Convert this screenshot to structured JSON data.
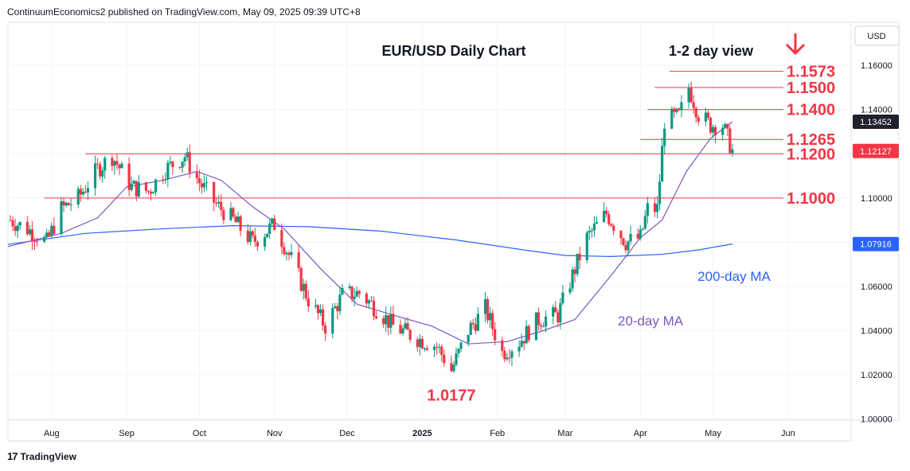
{
  "header": {
    "publisher_line": "ContinuumEconomics2 published on TradingView.com, May 09, 2025 09:39 UTC+8"
  },
  "footer": {
    "brand": "TradingView",
    "logo_icon": "tradingview-logo-icon"
  },
  "chart_data": {
    "type": "candlestick",
    "title": "EUR/USD Daily Chart",
    "view_label": "1-2 day view",
    "view_icon": "arrow-down-icon",
    "currency_label": "USD",
    "y_ticks": [
      "1.16000",
      "1.14000",
      "1.12000",
      "1.10000",
      "1.08000",
      "1.06000",
      "1.04000",
      "1.02000",
      "1.00000"
    ],
    "y_tick_values": [
      1.16,
      1.14,
      1.12,
      1.1,
      1.08,
      1.06,
      1.04,
      1.02,
      1.0
    ],
    "ylim": [
      0.9995,
      1.1795
    ],
    "x_labels": [
      "Aug",
      "Sep",
      "Oct",
      "Nov",
      "Dec",
      "2025",
      "Feb",
      "Mar",
      "Apr",
      "May",
      "Jun"
    ],
    "x_label_dates": [
      "2024-08-01",
      "2024-09-01",
      "2024-10-01",
      "2024-11-01",
      "2024-12-01",
      "2025-01-01",
      "2025-02-01",
      "2025-03-01",
      "2025-04-01",
      "2025-05-01",
      "2025-06-01"
    ],
    "xlim": [
      "2024-07-14",
      "2025-06-27"
    ],
    "price_labels": [
      {
        "text": "1.13452",
        "value": 1.13452,
        "bg": "#1e222d"
      },
      {
        "text": "1.12127",
        "value": 1.12127,
        "bg": "#f23645"
      },
      {
        "text": "1.07916",
        "value": 1.07916,
        "bg": "#2962ff"
      }
    ],
    "levels": [
      {
        "label": "1.1573",
        "value": 1.1573,
        "start": "2025-04-13"
      },
      {
        "label": "1.1500",
        "value": 1.15,
        "start": "2025-04-07"
      },
      {
        "label": "1.1400",
        "value": 1.14,
        "start": "2025-04-04"
      },
      {
        "label": "1.1265",
        "value": 1.1265,
        "start": "2025-04-01"
      },
      {
        "label": "1.1200",
        "value": 1.12,
        "start": "2024-08-15"
      },
      {
        "label": "1.1000",
        "value": 1.1,
        "start": "2024-07-29"
      }
    ],
    "low_annotation": {
      "label": "1.0177",
      "value": 1.0177,
      "date": "2025-01-13"
    },
    "ma_labels": [
      {
        "label": "200-day MA",
        "color": "#2962ff"
      },
      {
        "label": "20-day MA",
        "color": "#7e57c2"
      }
    ],
    "colors": {
      "up": "#089981",
      "down": "#f23645",
      "level": "#f23645",
      "ma20": "#7e57c2",
      "ma200": "#2962ff",
      "grid": "#f0f3fa"
    },
    "ohlc_key_points": [
      [
        "2024-07-15",
        1.09
      ],
      [
        "2024-07-22",
        1.086
      ],
      [
        "2024-07-30",
        1.08
      ],
      [
        "2024-08-05",
        1.095
      ],
      [
        "2024-08-12",
        1.1
      ],
      [
        "2024-08-20",
        1.113
      ],
      [
        "2024-08-26",
        1.119
      ],
      [
        "2024-09-03",
        1.105
      ],
      [
        "2024-09-10",
        1.103
      ],
      [
        "2024-09-17",
        1.113
      ],
      [
        "2024-09-25",
        1.119
      ],
      [
        "2024-10-01",
        1.107
      ],
      [
        "2024-10-08",
        1.097
      ],
      [
        "2024-10-15",
        1.09
      ],
      [
        "2024-10-23",
        1.08
      ],
      [
        "2024-11-01",
        1.088
      ],
      [
        "2024-11-08",
        1.072
      ],
      [
        "2024-11-15",
        1.054
      ],
      [
        "2024-11-22",
        1.042
      ],
      [
        "2024-11-29",
        1.056
      ],
      [
        "2024-12-06",
        1.057
      ],
      [
        "2024-12-13",
        1.05
      ],
      [
        "2024-12-20",
        1.042
      ],
      [
        "2024-12-31",
        1.036
      ],
      [
        "2025-01-07",
        1.033
      ],
      [
        "2025-01-13",
        1.022
      ],
      [
        "2025-01-20",
        1.04
      ],
      [
        "2025-01-27",
        1.05
      ],
      [
        "2025-02-03",
        1.03
      ],
      [
        "2025-02-10",
        1.035
      ],
      [
        "2025-02-18",
        1.045
      ],
      [
        "2025-02-26",
        1.047
      ],
      [
        "2025-03-04",
        1.065
      ],
      [
        "2025-03-10",
        1.082
      ],
      [
        "2025-03-18",
        1.093
      ],
      [
        "2025-03-26",
        1.08
      ],
      [
        "2025-04-01",
        1.082
      ],
      [
        "2025-04-04",
        1.095
      ],
      [
        "2025-04-08",
        1.095
      ],
      [
        "2025-04-11",
        1.135
      ],
      [
        "2025-04-17",
        1.137
      ],
      [
        "2025-04-21",
        1.15
      ],
      [
        "2025-04-25",
        1.138
      ],
      [
        "2025-04-30",
        1.133
      ],
      [
        "2025-05-05",
        1.133
      ],
      [
        "2025-05-09",
        1.1213
      ]
    ],
    "ma20_points": [
      [
        "2024-07-14",
        1.078
      ],
      [
        "2024-08-05",
        1.084
      ],
      [
        "2024-08-20",
        1.091
      ],
      [
        "2024-09-01",
        1.105
      ],
      [
        "2024-09-16",
        1.108
      ],
      [
        "2024-09-30",
        1.112
      ],
      [
        "2024-10-10",
        1.108
      ],
      [
        "2024-10-23",
        1.096
      ],
      [
        "2024-11-05",
        1.086
      ],
      [
        "2024-11-20",
        1.068
      ],
      [
        "2024-12-05",
        1.052
      ],
      [
        "2024-12-20",
        1.047
      ],
      [
        "2025-01-05",
        1.042
      ],
      [
        "2025-01-20",
        1.034
      ],
      [
        "2025-02-05",
        1.035
      ],
      [
        "2025-02-20",
        1.04
      ],
      [
        "2025-03-05",
        1.045
      ],
      [
        "2025-03-20",
        1.065
      ],
      [
        "2025-04-01",
        1.082
      ],
      [
        "2025-04-10",
        1.09
      ],
      [
        "2025-04-20",
        1.112
      ],
      [
        "2025-04-30",
        1.127
      ],
      [
        "2025-05-09",
        1.1345
      ]
    ],
    "ma200_points": [
      [
        "2024-07-14",
        1.079
      ],
      [
        "2024-08-15",
        1.084
      ],
      [
        "2024-09-15",
        1.086
      ],
      [
        "2024-10-15",
        1.0875
      ],
      [
        "2024-11-15",
        1.087
      ],
      [
        "2024-12-15",
        1.085
      ],
      [
        "2025-01-15",
        1.081
      ],
      [
        "2025-02-15",
        1.076
      ],
      [
        "2025-03-01",
        1.074
      ],
      [
        "2025-03-20",
        1.0735
      ],
      [
        "2025-04-10",
        1.0745
      ],
      [
        "2025-04-25",
        1.0765
      ],
      [
        "2025-05-09",
        1.0792
      ]
    ]
  }
}
